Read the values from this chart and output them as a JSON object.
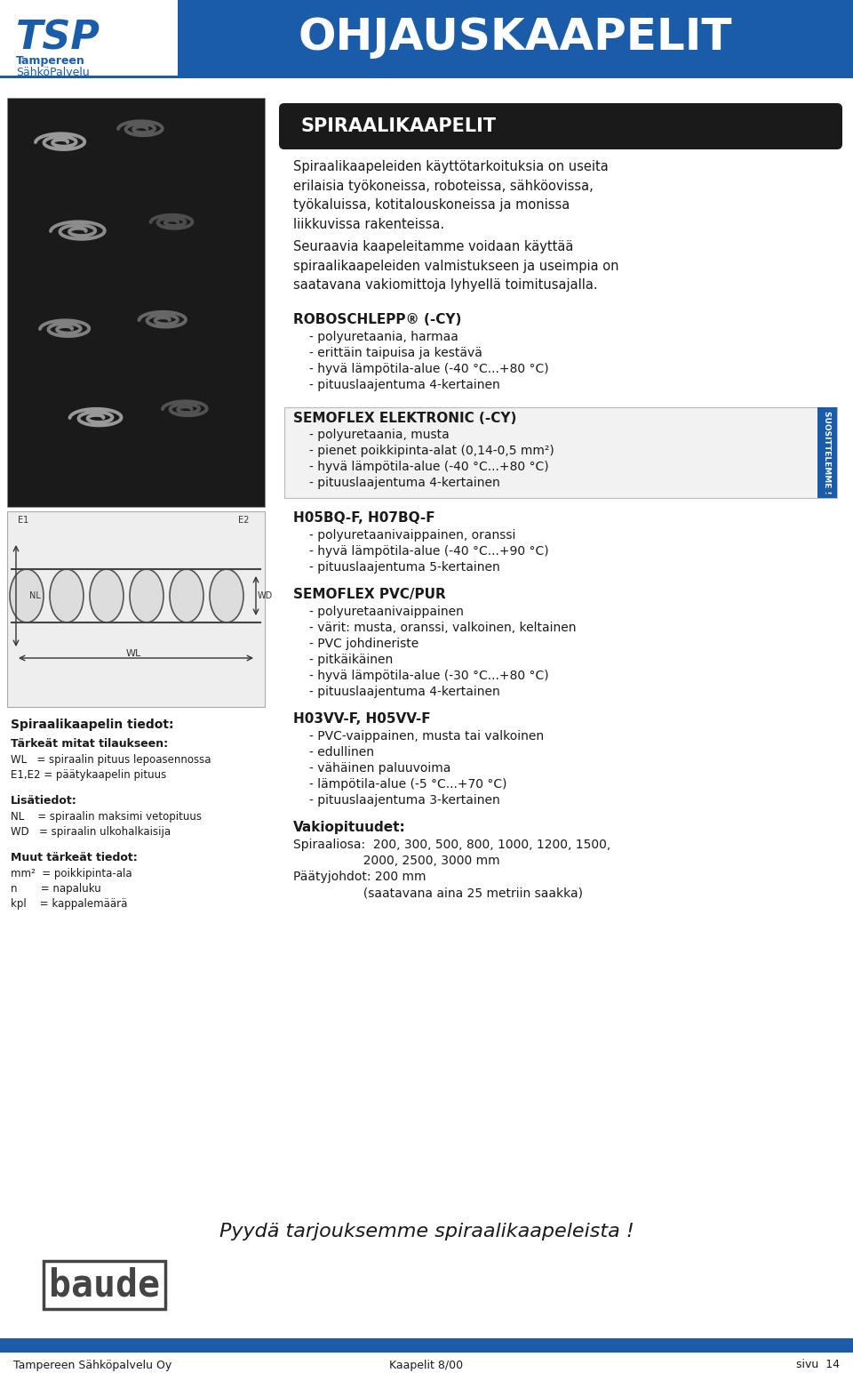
{
  "page_bg": "#ffffff",
  "header_bg": "#1a5ca8",
  "header_title": "OHJAUSKAAPELIT",
  "header_title_color": "#ffffff",
  "logo_color": "#1a5ca8",
  "section_box_color": "#1a1a1a",
  "section_title": "SPIRAALIKAAPELIT",
  "section_title_color": "#ffffff",
  "body_text_color": "#1a1a1a",
  "para1": "Spiraalikaapeleiden käyttötarkoituksia on useita\nerilaisia työkoneissa, roboteissa, sähköovissa,\ntyökaluissa, kotitalouskoneissa ja monissa\nliikkuvissa rakenteissa.",
  "para2": "Seuraavia kaapeleitamme voidaan käyttää\nspiraalikaapeleiden valmistukseen ja useimpia on\nsaatavana vakiomittoja lyhyellä toimitusajalla.",
  "robo_title": "ROBOSCHLEPP® (-CY)",
  "robo_items": [
    "- polyuretaania, harmaa",
    "- erittäin taipuisa ja kestävä",
    "- hyvä lämpötila-alue (-40 °C...+80 °C)",
    "- pituuslaajentuma 4-kertainen"
  ],
  "semoflex_title": "SEMOFLEX ELEKTRONIC (-CY)",
  "semoflex_items": [
    "- polyuretaania, musta",
    "- pienet poikkipinta-alat (0,14-0,5 mm²)",
    "- hyvä lämpötila-alue (-40 °C...+80 °C)",
    "- pituuslaajentuma 4-kertainen"
  ],
  "suosit_text": "SUOSITTELEMME !",
  "suosit_bg": "#1a5ca8",
  "suosit_color": "#ffffff",
  "h05bq_title": "H05BQ-F, H07BQ-F",
  "h05bq_items": [
    "- polyuretaanivaippainen, oranssi",
    "- hyvä lämpötila-alue (-40 °C...+90 °C)",
    "- pituuslaajentuma 5-kertainen"
  ],
  "pvc_title": "SEMOFLEX PVC/PUR",
  "pvc_items": [
    "- polyuretaanivaippainen",
    "- värit: musta, oranssi, valkoinen, keltainen",
    "- PVC johdineriste",
    "- pitkäikäinen",
    "- hyvä lämpötila-alue (-30 °C...+80 °C)",
    "- pituuslaajentuma 4-kertainen"
  ],
  "h03vv_title": "H03VV-F, H05VV-F",
  "h03vv_items": [
    "- PVC-vaippainen, musta tai valkoinen",
    "- edullinen",
    "- vähäinen paluuvoima",
    "- lämpötila-alue (-5 °C...+70 °C)",
    "- pituuslaajentuma 3-kertainen"
  ],
  "vakio_title": "Vakiopituudet:",
  "vakio_text1": "Spiraaliosa:  200, 300, 500, 800, 1000, 1200, 1500,",
  "vakio_text2": "                  2000, 2500, 3000 mm",
  "vakio_text3": "Päätyjohdot: 200 mm",
  "vakio_text4": "                  (saatavana aina 25 metriin saakka)",
  "spiral_info_title": "Spiraalikaapelin tiedot:",
  "tarkeat_title": "Tärkeät mitat tilaukseen:",
  "tarkeat_items": [
    "WL   = spiraalin pituus lepoasennossa",
    "E1,E2 = päätykaapelin pituus"
  ],
  "lisatiedot_title": "Lisätiedot:",
  "lisatiedot_items": [
    "NL    = spiraalin maksimi vetopituus",
    "WD   = spiraalin ulkohalkaisija"
  ],
  "muut_title": "Muut tärkeät tiedot:",
  "muut_items": [
    "mm²  = poikkipinta-ala",
    "n       = napaluku",
    "kpl    = kappalemäärä"
  ],
  "pyydä_text": "Pyydä tarjouksemme spiraalikaapeleista !",
  "footer_bg": "#1a5ca8",
  "footer_left": "Tampereen Sähköpalvelu Oy",
  "footer_mid": "Kaapelit 8/00",
  "footer_right": "sivu  14",
  "footer_color": "#ffffff",
  "baude_text": "baude"
}
